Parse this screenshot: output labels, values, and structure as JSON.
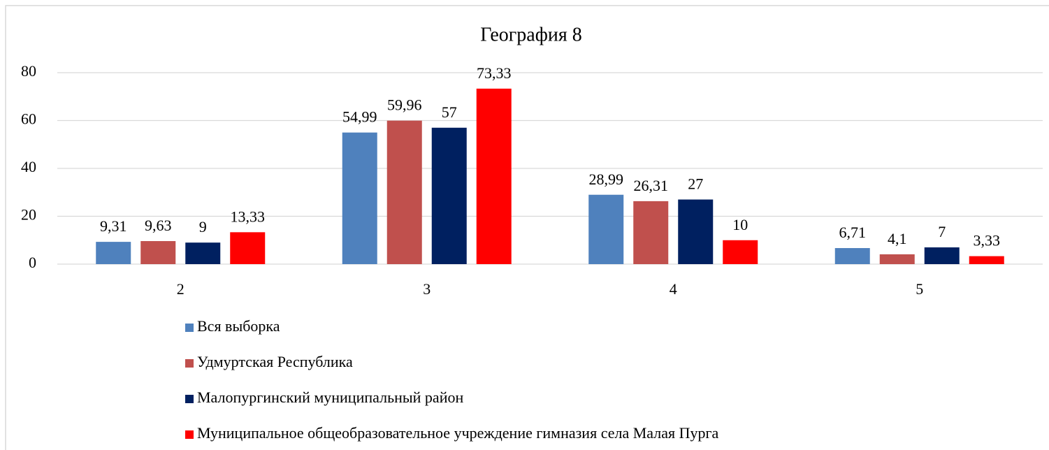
{
  "chart_data": {
    "type": "bar",
    "title": "География 8",
    "categories": [
      "2",
      "3",
      "4",
      "5"
    ],
    "series": [
      {
        "name": "Вся выборка",
        "color": "#4f81bd",
        "values": [
          9.31,
          54.99,
          28.99,
          6.71
        ],
        "value_labels": [
          "9,31",
          "54,99",
          "28,99",
          "6,71"
        ]
      },
      {
        "name": "Удмуртская Республика",
        "color": "#c0504d",
        "values": [
          9.63,
          59.96,
          26.31,
          4.1
        ],
        "value_labels": [
          "9,63",
          "59,96",
          "26,31",
          "4,1"
        ]
      },
      {
        "name": "Малопургинский муниципальный район",
        "color": "#002060",
        "values": [
          9,
          57,
          27,
          7
        ],
        "value_labels": [
          "9",
          "57",
          "27",
          "7"
        ]
      },
      {
        "name": "Муниципальное общеобразовательное учреждение гимназия села Малая Пурга",
        "color": "#ff0000",
        "values": [
          13.33,
          73.33,
          10,
          3.33
        ],
        "value_labels": [
          "13,33",
          "73,33",
          "10",
          "3,33"
        ]
      }
    ],
    "ylim": [
      0,
      80
    ],
    "yticks": [
      0,
      20,
      40,
      60,
      80
    ],
    "grid": true,
    "legend": "bottom"
  }
}
